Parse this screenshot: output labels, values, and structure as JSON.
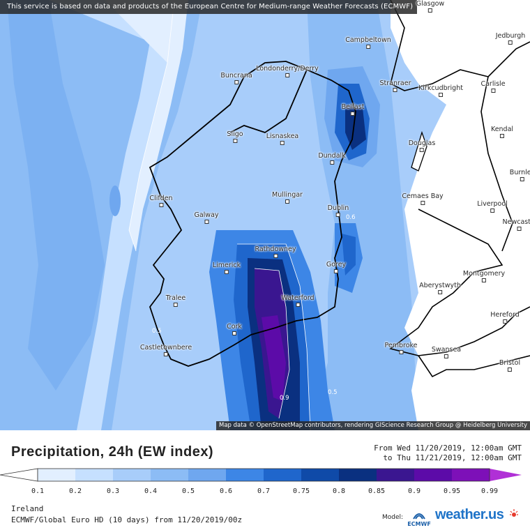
{
  "banner": "This service is based on data and products of the European Centre for Medium-range Weather Forecasts (ECMWF)",
  "attribution": "Map data © OpenStreetMap contributors, rendering GIScience Research Group @ Heidelberg University",
  "map": {
    "region": "Ireland",
    "cities": [
      "Glasgow",
      "Jedburgh",
      "Campbeltown",
      "Buncrana",
      "Londonderry/Derry",
      "Stranraer",
      "Kirkcudbright",
      "Carlisle",
      "Belfast",
      "Kendal",
      "Sligo",
      "Lisnaskea",
      "Douglas",
      "Dundalk",
      "Burnley",
      "Clifden",
      "Mullingar",
      "Cemaes Bay",
      "Liverpool",
      "Galway",
      "Dublin",
      "Newcastle",
      "Rathdowney",
      "Limerick",
      "Gorey",
      "Montgomery",
      "Aberystwyth",
      "Tralee",
      "Waterford",
      "Hereford",
      "Cork",
      "Castletownbere",
      "Pembroke",
      "Swansea",
      "Bristol"
    ],
    "contour_labels": [
      "0.6",
      "0.9",
      "0.5",
      "0.5"
    ]
  },
  "footer": {
    "title": "Precipitation, 24h (EW index)",
    "from": "From Wed 11/20/2019, 12:00am GMT",
    "to": "to Thu 11/21/2019, 12:00am GMT",
    "region": "Ireland",
    "model_run": "ECMWF/Global Euro HD (10 days) from 11/20/2019/00z",
    "model_label": "Model:",
    "model_logo": "ECMWF",
    "brand": "weather.us"
  },
  "colorbar": {
    "ticks": [
      "0.1",
      "0.2",
      "0.3",
      "0.4",
      "0.5",
      "0.6",
      "0.7",
      "0.75",
      "0.8",
      "0.85",
      "0.9",
      "0.95",
      "0.99"
    ],
    "colors": [
      "#ffffff",
      "#e2efff",
      "#c6e0ff",
      "#a8cdfa",
      "#8cbcf5",
      "#6fa7ef",
      "#3d86e6",
      "#1f66cc",
      "#0f4aa8",
      "#0a3080",
      "#3a1690",
      "#5c0ba8",
      "#7d10b8",
      "#b030d6"
    ]
  }
}
